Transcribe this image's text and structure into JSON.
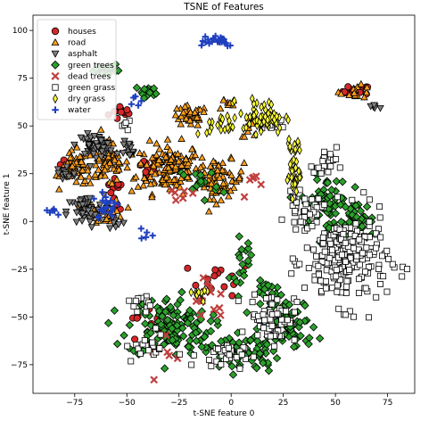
{
  "chart_data": {
    "type": "scatter",
    "title": "TSNE of Features",
    "xlabel": "t-SNE feature 0",
    "ylabel": "t-SNE feature 1",
    "xlim": [
      -95,
      88
    ],
    "ylim": [
      -90,
      108
    ],
    "xticks": [
      "−75",
      "−50",
      "−25",
      "0",
      "25",
      "50",
      "75"
    ],
    "xtick_values": [
      -75,
      -50,
      -25,
      0,
      25,
      50,
      75
    ],
    "yticks": [
      "−75",
      "−50",
      "−25",
      "0",
      "25",
      "50",
      "75",
      "100"
    ],
    "ytick_values": [
      -75,
      -50,
      -25,
      0,
      25,
      50,
      75,
      100
    ],
    "legend_position": "top-left",
    "grid": false,
    "series": [
      {
        "name": "houses",
        "marker": "circle",
        "color": "#d62728",
        "clusters": [
          [
            -52,
            57,
            6,
            4,
            12
          ],
          [
            -40,
            30,
            5,
            4,
            10
          ],
          [
            -55,
            18,
            4,
            4,
            8
          ],
          [
            60,
            68,
            6,
            3,
            14
          ],
          [
            -5,
            -30,
            14,
            8,
            14
          ],
          [
            -40,
            -55,
            12,
            10,
            12
          ],
          [
            -55,
            8,
            3,
            3,
            4
          ],
          [
            -80,
            30,
            3,
            3,
            4
          ]
        ]
      },
      {
        "name": "road",
        "marker": "triangle-up",
        "color": "#ff9f1c",
        "clusters": [
          [
            -30,
            28,
            14,
            12,
            150
          ],
          [
            -5,
            22,
            10,
            9,
            70
          ],
          [
            -60,
            30,
            10,
            10,
            70
          ],
          [
            -20,
            55,
            8,
            5,
            40
          ],
          [
            -75,
            28,
            6,
            8,
            40
          ],
          [
            -60,
            5,
            8,
            6,
            30
          ],
          [
            60,
            68,
            7,
            3,
            15
          ],
          [
            10,
            50,
            5,
            5,
            12
          ],
          [
            -2,
            62,
            4,
            4,
            8
          ]
        ]
      },
      {
        "name": "asphalt",
        "marker": "triangle-down",
        "color": "#808080",
        "clusters": [
          [
            -65,
            40,
            8,
            5,
            50
          ],
          [
            -70,
            5,
            8,
            8,
            50
          ],
          [
            -80,
            25,
            5,
            5,
            15
          ],
          [
            -48,
            38,
            4,
            4,
            12
          ],
          [
            68,
            60,
            3,
            2,
            6
          ],
          [
            -55,
            0,
            4,
            4,
            8
          ]
        ]
      },
      {
        "name": "green trees",
        "marker": "diamond",
        "color": "#2ca02c",
        "clusters": [
          [
            -30,
            -55,
            18,
            14,
            130
          ],
          [
            5,
            -68,
            16,
            10,
            80
          ],
          [
            30,
            -55,
            10,
            12,
            50
          ],
          [
            -60,
            80,
            5,
            2,
            20
          ],
          [
            -40,
            68,
            5,
            3,
            15
          ],
          [
            45,
            10,
            10,
            12,
            60
          ],
          [
            60,
            0,
            8,
            10,
            40
          ],
          [
            20,
            -40,
            8,
            8,
            30
          ],
          [
            -15,
            20,
            8,
            8,
            15
          ],
          [
            5,
            -20,
            5,
            10,
            18
          ]
        ]
      },
      {
        "name": "dead trees",
        "marker": "x",
        "color": "#c04040",
        "clusters": [
          [
            -10,
            -40,
            10,
            10,
            14
          ],
          [
            -30,
            -70,
            10,
            8,
            8
          ],
          [
            -25,
            15,
            6,
            6,
            6
          ],
          [
            10,
            20,
            6,
            6,
            6
          ]
        ]
      },
      {
        "name": "green grass",
        "marker": "square",
        "color": "#ffffff",
        "clusters": [
          [
            55,
            -20,
            18,
            22,
            220
          ],
          [
            35,
            5,
            8,
            8,
            40
          ],
          [
            20,
            -50,
            10,
            12,
            70
          ],
          [
            -5,
            -70,
            10,
            6,
            30
          ],
          [
            -40,
            -65,
            10,
            8,
            20
          ],
          [
            -45,
            -45,
            6,
            5,
            12
          ],
          [
            45,
            30,
            5,
            8,
            20
          ],
          [
            20,
            50,
            5,
            4,
            10
          ],
          [
            -50,
            50,
            4,
            3,
            6
          ]
        ]
      },
      {
        "name": "dry grass",
        "marker": "thin-diamond",
        "color": "#ffff33",
        "clusters": [
          [
            15,
            55,
            10,
            8,
            60
          ],
          [
            -5,
            50,
            6,
            5,
            20
          ],
          [
            30,
            25,
            3,
            10,
            30
          ],
          [
            -12,
            -38,
            5,
            3,
            10
          ],
          [
            30,
            40,
            4,
            5,
            10
          ]
        ]
      },
      {
        "name": "water",
        "marker": "plus",
        "color": "#1f3fbf",
        "clusters": [
          [
            -8,
            95,
            10,
            3,
            25
          ],
          [
            -60,
            8,
            6,
            8,
            20
          ],
          [
            -85,
            5,
            3,
            3,
            6
          ],
          [
            -45,
            65,
            3,
            3,
            5
          ],
          [
            -40,
            -8,
            3,
            4,
            5
          ]
        ]
      }
    ]
  }
}
